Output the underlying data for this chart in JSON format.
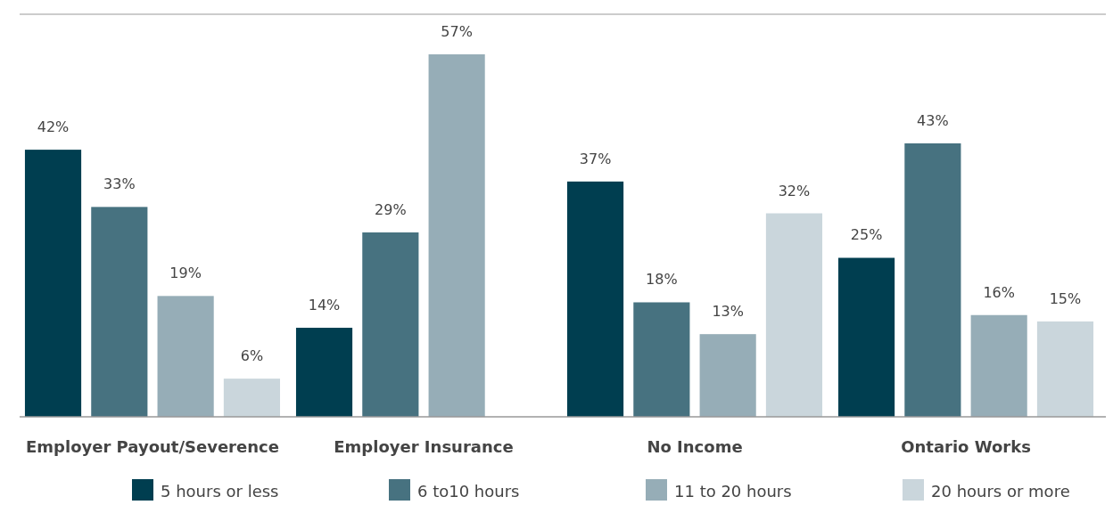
{
  "chart_data": {
    "type": "bar",
    "categories": [
      "Employer Payout/Severence",
      "Employer Insurance",
      "No Income",
      "Ontario Works"
    ],
    "series": [
      {
        "name": "5 hours or less",
        "color": "#003e50",
        "values": [
          42,
          14,
          37,
          25
        ],
        "value_labels": [
          "42%",
          "14%",
          "37%",
          "25%"
        ]
      },
      {
        "name": "6 to10 hours",
        "color": "#477280",
        "values": [
          33,
          29,
          18,
          43
        ],
        "value_labels": [
          "33%",
          "29%",
          "18%",
          "43%"
        ]
      },
      {
        "name": "11 to 20 hours",
        "color": "#96adb7",
        "values": [
          19,
          57,
          13,
          16
        ],
        "value_labels": [
          "19%",
          "57%",
          "13%",
          "16%"
        ]
      },
      {
        "name": "20 hours or more",
        "color": "#cad6dc",
        "values": [
          6,
          null,
          32,
          15
        ],
        "value_labels": [
          "6%",
          null,
          "32%",
          "15%"
        ]
      }
    ],
    "legend": "bottom"
  }
}
